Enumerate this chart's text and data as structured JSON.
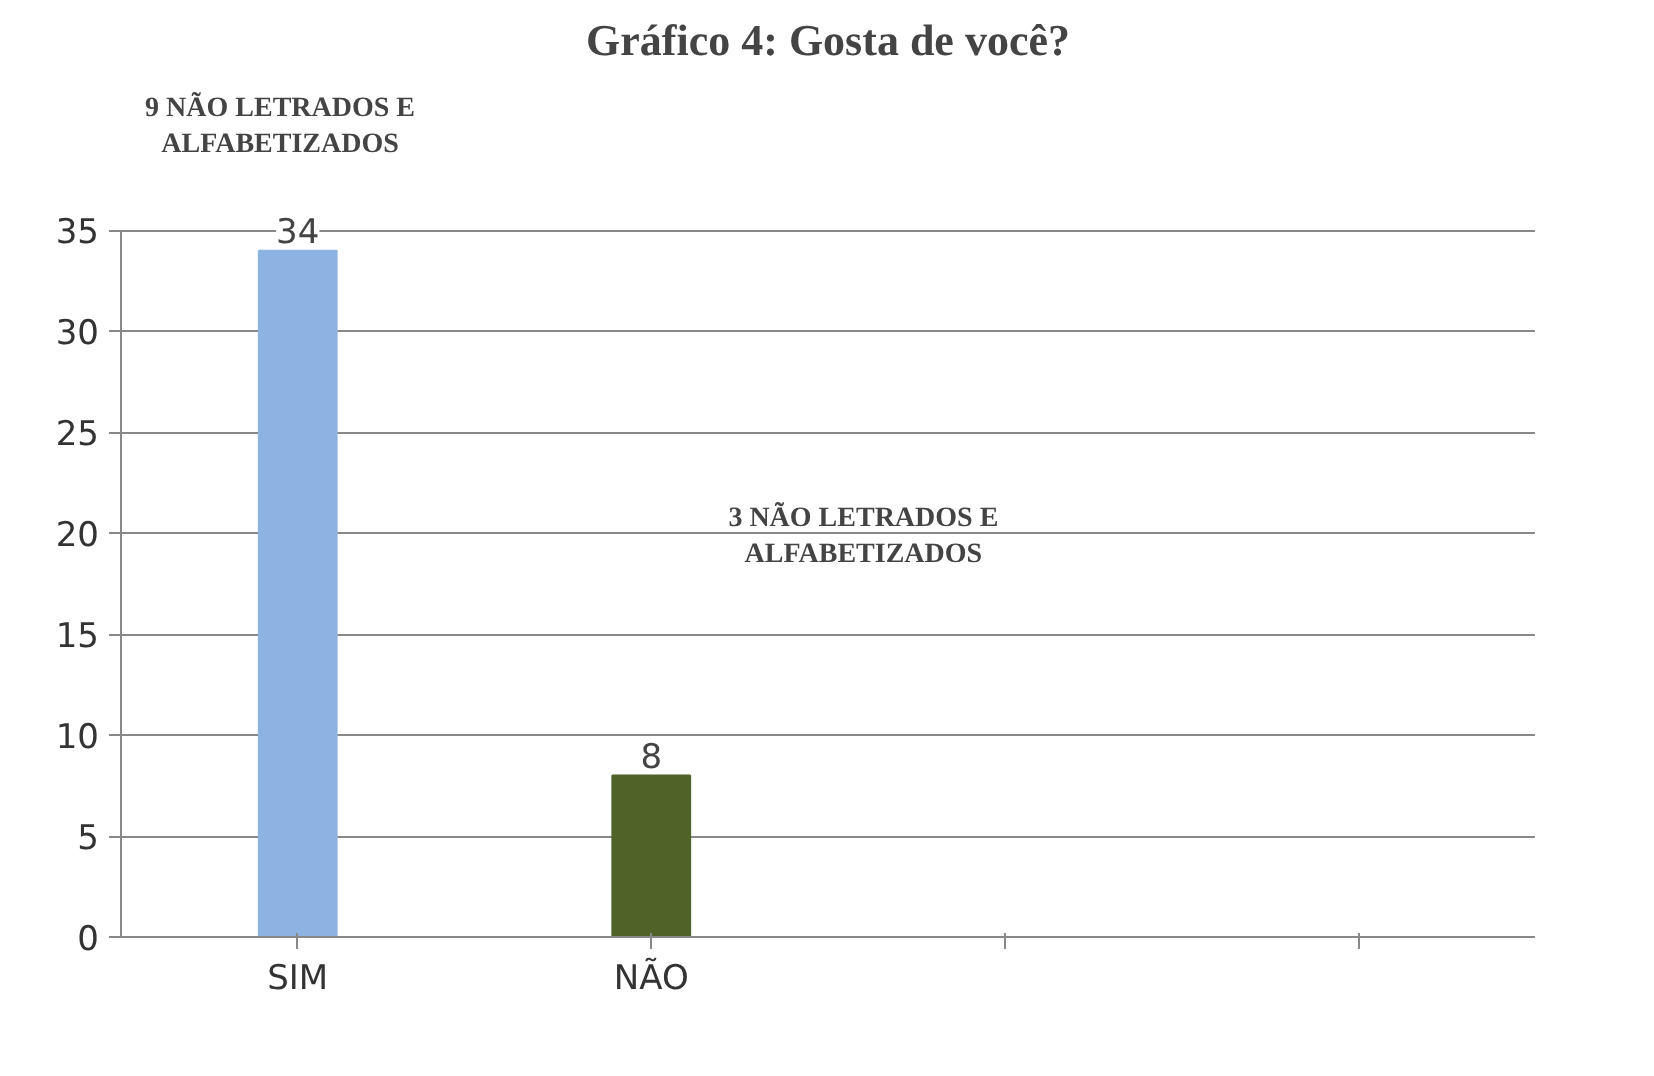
{
  "chart_data": {
    "type": "bar",
    "title": "Gráfico 4: Gosta de você?",
    "categories": [
      "SIM",
      "NÃO",
      null,
      null
    ],
    "values": [
      34,
      8,
      null,
      null
    ],
    "colors": [
      "#8db3e2",
      "#4f6228",
      "#8db3e2",
      "#8db3e2"
    ],
    "ylim": [
      0,
      35
    ],
    "yticks": [
      0,
      5,
      10,
      15,
      20,
      25,
      30,
      35
    ],
    "grid": "y",
    "data_labels": true,
    "annotations": [
      "9 NÃO LETRADOS E\nALFABETIZADOS",
      "3 NÃO LETRADOS E\nALFABETIZADOS"
    ]
  }
}
